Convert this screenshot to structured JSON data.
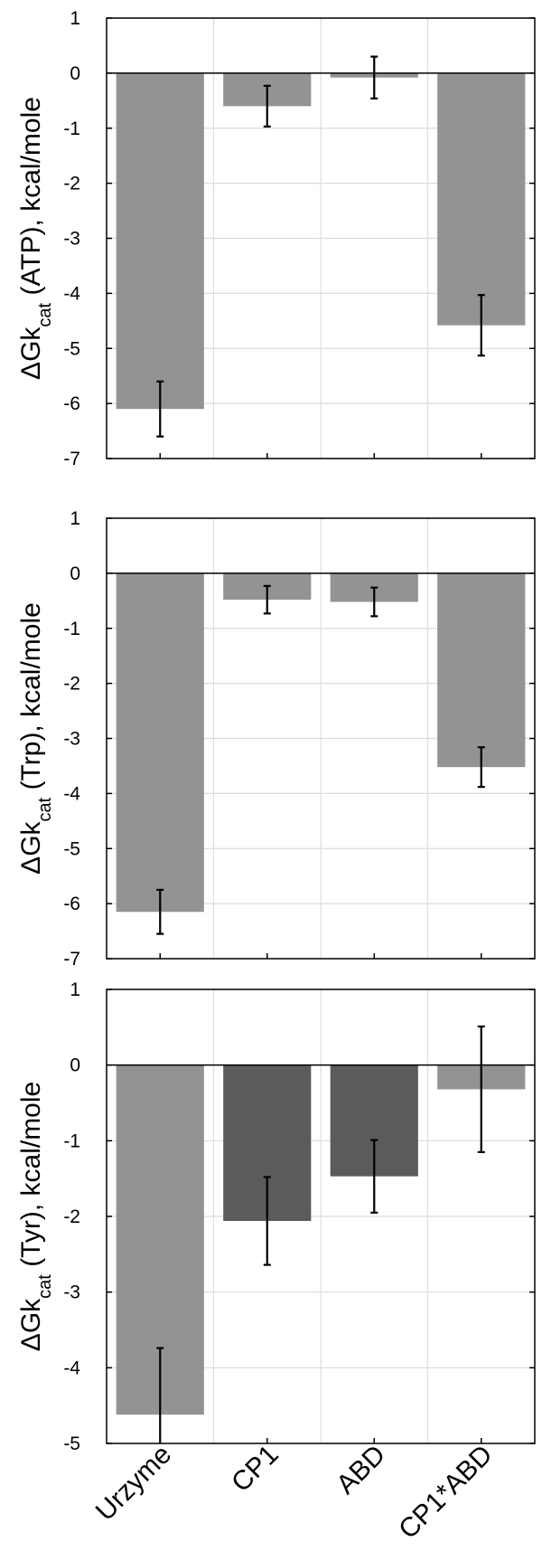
{
  "chart_data": [
    {
      "type": "bar",
      "categories": [
        "Urzyme",
        "CP1",
        "ABD",
        "CP1*ABD"
      ],
      "values": [
        -6.1,
        -0.6,
        -0.08,
        -4.58
      ],
      "errors": [
        0.5,
        0.37,
        0.38,
        0.55
      ],
      "bar_colors": [
        "#939393",
        "#939393",
        "#939393",
        "#939393"
      ],
      "ylabel": {
        "main": "ΔGk",
        "sub": "cat",
        "rest": " (ATP), kcal/mole"
      },
      "ylim": [
        -7,
        1
      ],
      "yticks": [
        1,
        0,
        -1,
        -2,
        -3,
        -4,
        -5,
        -6,
        -7
      ],
      "grid": true,
      "show_category_labels": false
    },
    {
      "type": "bar",
      "categories": [
        "Urzyme",
        "CP1",
        "ABD",
        "CP1*ABD"
      ],
      "values": [
        -6.15,
        -0.48,
        -0.52,
        -3.52
      ],
      "errors": [
        0.4,
        0.25,
        0.26,
        0.36
      ],
      "bar_colors": [
        "#939393",
        "#939393",
        "#939393",
        "#939393"
      ],
      "ylabel": {
        "main": "ΔGk",
        "sub": "cat",
        "rest": " (Trp), kcal/mole"
      },
      "ylim": [
        -7,
        1
      ],
      "yticks": [
        1,
        0,
        -1,
        -2,
        -3,
        -4,
        -5,
        -6,
        -7
      ],
      "grid": true,
      "show_category_labels": false
    },
    {
      "type": "bar",
      "categories": [
        "Urzyme",
        "CP1",
        "ABD",
        "CP1*ABD"
      ],
      "values": [
        -4.62,
        -2.06,
        -1.47,
        -0.32
      ],
      "errors": [
        0.88,
        0.58,
        0.48,
        0.83
      ],
      "bar_colors": [
        "#939393",
        "#5b5b5b",
        "#5b5b5b",
        "#939393"
      ],
      "ylabel": {
        "main": "ΔGk",
        "sub": "cat",
        "rest": " (Tyr), kcal/mole"
      },
      "ylim": [
        -5,
        1
      ],
      "yticks": [
        1,
        0,
        -1,
        -2,
        -3,
        -4,
        -5
      ],
      "grid": true,
      "show_category_labels": true
    }
  ]
}
